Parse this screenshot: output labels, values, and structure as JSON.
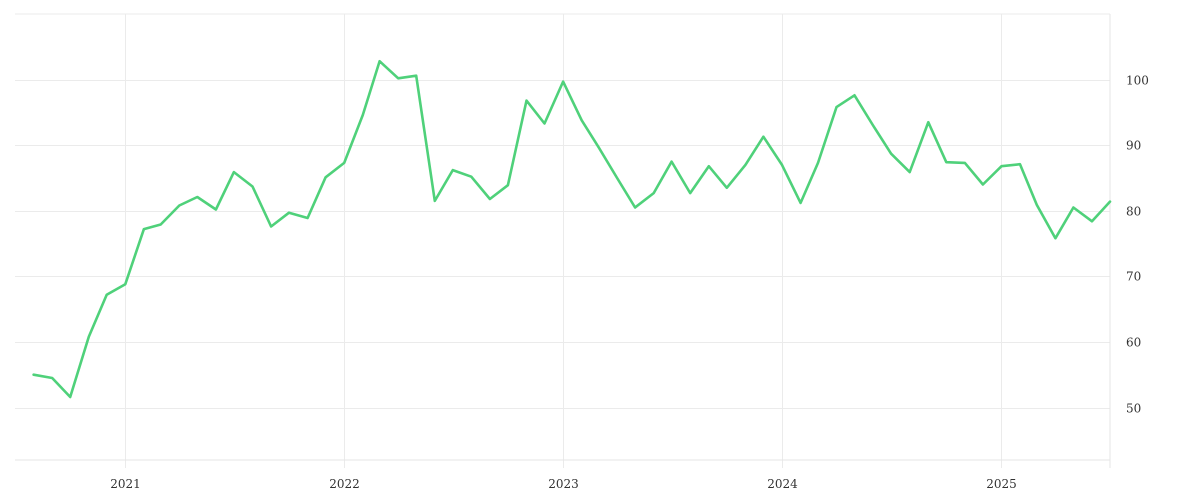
{
  "chart_data": {
    "type": "line",
    "title": "",
    "xlabel": "",
    "ylabel": "",
    "x_range": [
      "2020-07-01",
      "2025-07-01"
    ],
    "ylim": [
      42,
      110
    ],
    "grid": true,
    "y_axis_side": "right",
    "x_ticks": [
      {
        "date": "2021-01-01",
        "label": "2021"
      },
      {
        "date": "2022-01-01",
        "label": "2022"
      },
      {
        "date": "2023-01-01",
        "label": "2023"
      },
      {
        "date": "2024-01-01",
        "label": "2024"
      },
      {
        "date": "2025-01-01",
        "label": "2025"
      }
    ],
    "y_ticks": [
      {
        "value": 50,
        "label": "50"
      },
      {
        "value": 60,
        "label": "60"
      },
      {
        "value": 70,
        "label": "70"
      },
      {
        "value": 80,
        "label": "80"
      },
      {
        "value": 90,
        "label": "90"
      },
      {
        "value": 100,
        "label": "100"
      }
    ],
    "series": [
      {
        "color": "#4fd17a",
        "x": [
          "2020-08-01",
          "2020-09-01",
          "2020-10-01",
          "2020-11-01",
          "2020-12-01",
          "2021-01-01",
          "2021-02-01",
          "2021-03-01",
          "2021-04-01",
          "2021-05-01",
          "2021-06-01",
          "2021-07-01",
          "2021-08-01",
          "2021-09-01",
          "2021-10-01",
          "2021-11-01",
          "2021-12-01",
          "2022-01-01",
          "2022-02-01",
          "2022-03-01",
          "2022-04-01",
          "2022-05-01",
          "2022-06-01",
          "2022-07-01",
          "2022-08-01",
          "2022-09-01",
          "2022-10-01",
          "2022-11-01",
          "2022-12-01",
          "2023-01-01",
          "2023-02-01",
          "2023-03-01",
          "2023-04-01",
          "2023-05-01",
          "2023-06-01",
          "2023-07-01",
          "2023-08-01",
          "2023-09-01",
          "2023-10-01",
          "2023-11-01",
          "2023-12-01",
          "2024-01-01",
          "2024-02-01",
          "2024-03-01",
          "2024-04-01",
          "2024-05-01",
          "2024-06-01",
          "2024-07-01",
          "2024-08-01",
          "2024-09-01",
          "2024-10-01",
          "2024-11-01",
          "2024-12-01",
          "2025-01-01",
          "2025-02-01",
          "2025-03-01",
          "2025-04-01",
          "2025-05-01",
          "2025-06-01",
          "2025-07-01"
        ],
        "values": [
          55.0,
          54.5,
          51.6,
          60.8,
          67.2,
          68.8,
          77.2,
          77.9,
          80.8,
          82.1,
          80.2,
          85.9,
          83.7,
          77.6,
          79.7,
          78.9,
          85.1,
          87.3,
          94.6,
          102.8,
          100.2,
          100.6,
          81.5,
          86.2,
          85.2,
          81.8,
          83.9,
          96.8,
          93.3,
          99.7,
          93.8,
          89.7,
          85.0,
          80.5,
          82.7,
          87.5,
          82.7,
          86.8,
          83.5,
          87.0,
          91.3,
          87.0,
          81.2,
          87.3,
          95.8,
          97.6,
          93.0,
          88.7,
          85.9,
          93.5,
          87.4,
          87.3,
          84.0,
          86.8,
          87.1,
          80.9,
          75.8,
          80.5,
          78.4,
          81.4
        ]
      }
    ]
  }
}
